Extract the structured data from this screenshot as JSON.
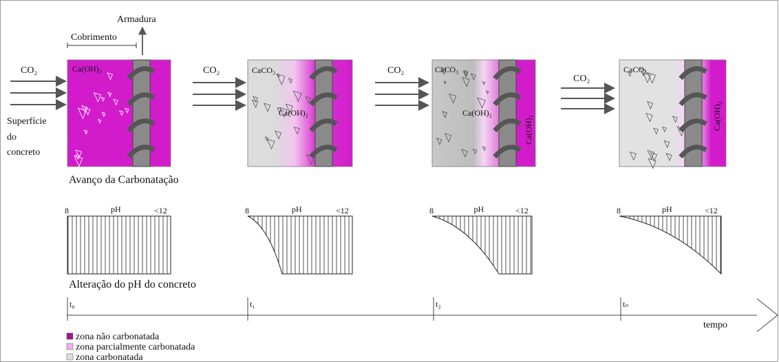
{
  "labels": {
    "armadura": "Armadura",
    "cobrimento": "Cobrimento",
    "superficie": [
      "Superfície",
      "do",
      "concreto"
    ],
    "avanco": "Avanço da Carbonatação",
    "alteracao": "Alteração do pH do concreto",
    "tempo": "tempo"
  },
  "stages": [
    {
      "co2": "CO₂",
      "labels": [
        "Ca(OH)₂"
      ],
      "ph": {
        "title": "pH",
        "min": "8",
        "max": "<12"
      },
      "time": "t₀"
    },
    {
      "co2": "CO₂",
      "labels": [
        "CaCO₃",
        "Ca(OH)₂"
      ],
      "ph": {
        "title": "pH",
        "min": "8",
        "max": "<12"
      },
      "time": "t₁"
    },
    {
      "co2": "CO₂",
      "labels": [
        "CaCO₃",
        "Ca(OH)₂",
        "Ca(OH)₂"
      ],
      "ph": {
        "title": "pH",
        "min": "8",
        "max": "<12"
      },
      "time": "t₂"
    },
    {
      "co2": "CO₂",
      "labels": [
        "CaCO₃",
        "Ca(OH)₂"
      ],
      "ph": {
        "title": "pH",
        "min": "8",
        "max": "<12"
      },
      "time": "tₙ"
    }
  ],
  "legend": [
    "zona não carbonatada",
    "zona parcialmente carbonatada",
    "zona carbonatada"
  ]
}
